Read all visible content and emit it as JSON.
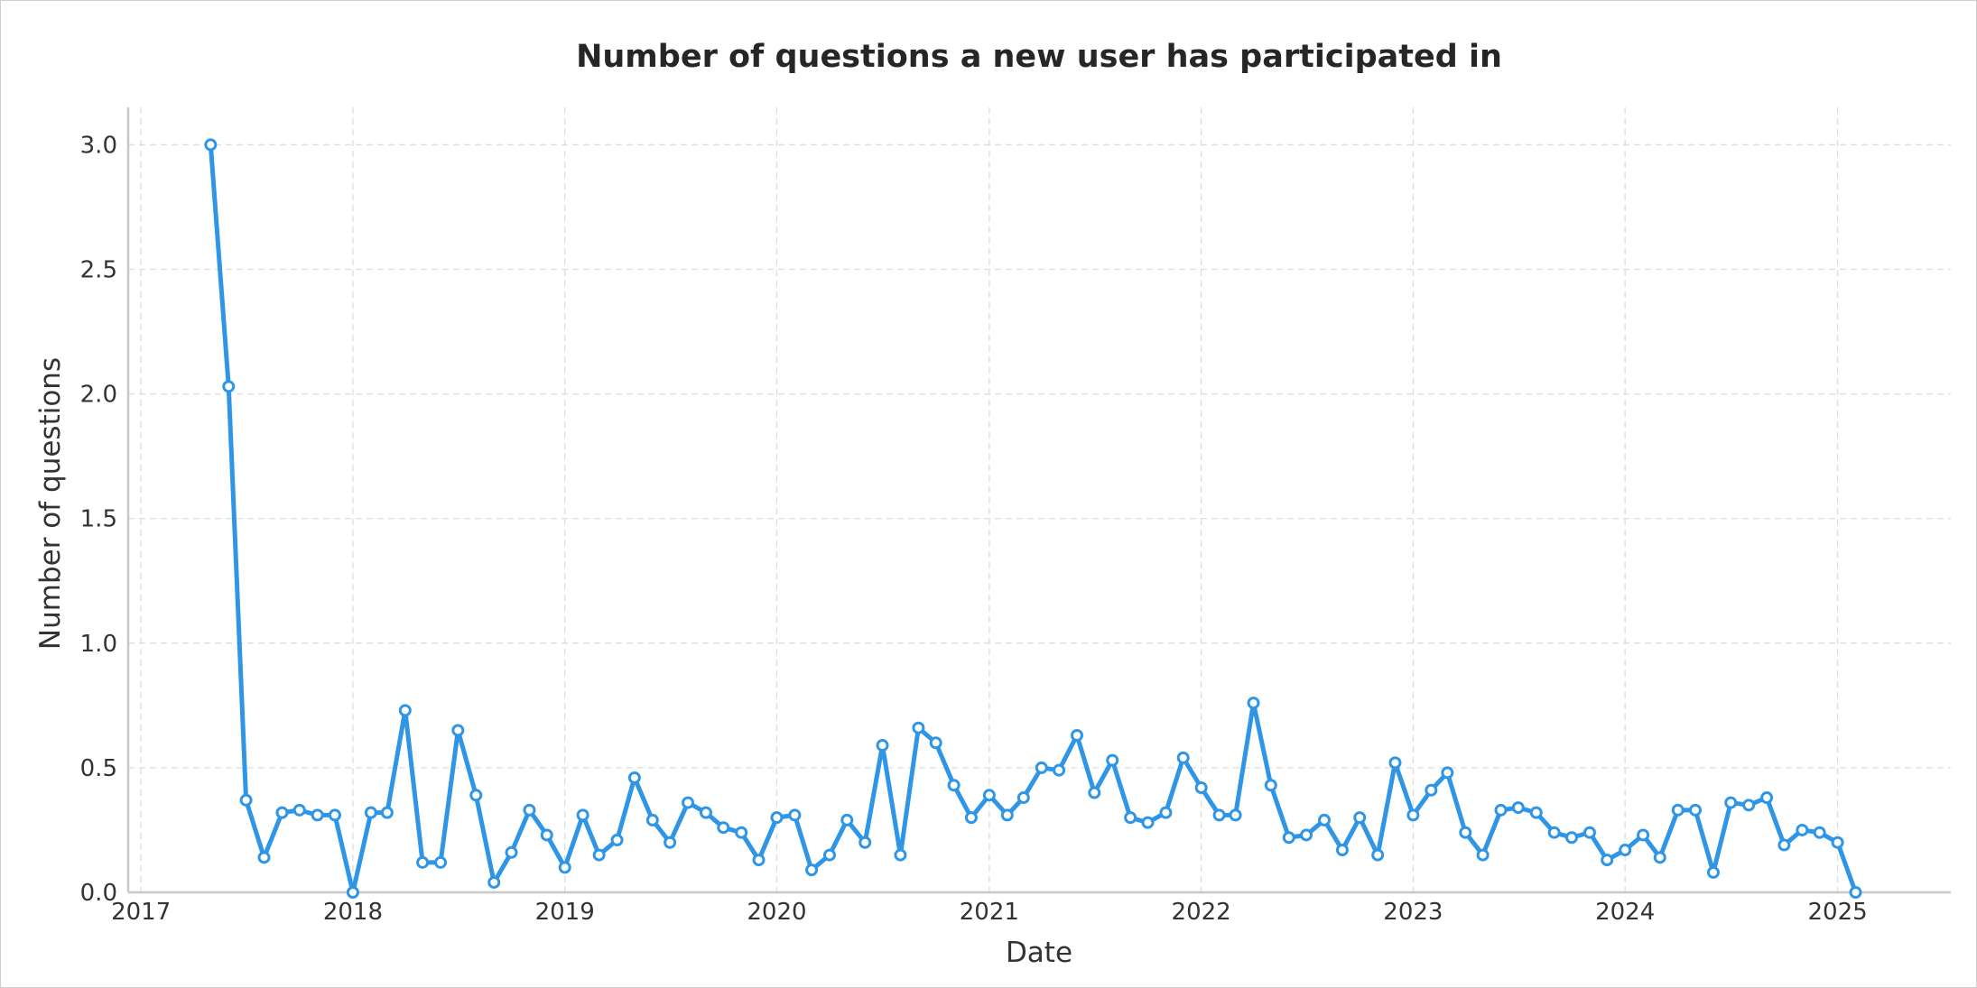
{
  "chart_data": {
    "type": "line",
    "title": "Number of questions a new user has participated in",
    "xlabel": "Date",
    "ylabel": "Number of questions",
    "xlim": [
      "2016-12-10",
      "2025-07-15"
    ],
    "ylim": [
      0,
      3.15
    ],
    "x_ticks": [
      "2017",
      "2018",
      "2019",
      "2020",
      "2021",
      "2022",
      "2023",
      "2024",
      "2025"
    ],
    "y_ticks": [
      "0.0",
      "0.5",
      "1.0",
      "1.5",
      "2.0",
      "2.5",
      "3.0"
    ],
    "grid": true,
    "series_color": "#2f95e6",
    "x": [
      "2017-05",
      "2017-06",
      "2017-07",
      "2017-08",
      "2017-09",
      "2017-10",
      "2017-11",
      "2017-12",
      "2018-01",
      "2018-02",
      "2018-03",
      "2018-04",
      "2018-05",
      "2018-06",
      "2018-07",
      "2018-08",
      "2018-09",
      "2018-10",
      "2018-11",
      "2018-12",
      "2019-01",
      "2019-02",
      "2019-03",
      "2019-04",
      "2019-05",
      "2019-06",
      "2019-07",
      "2019-08",
      "2019-09",
      "2019-10",
      "2019-11",
      "2019-12",
      "2020-01",
      "2020-02",
      "2020-03",
      "2020-04",
      "2020-05",
      "2020-06",
      "2020-07",
      "2020-08",
      "2020-09",
      "2020-10",
      "2020-11",
      "2020-12",
      "2021-01",
      "2021-02",
      "2021-03",
      "2021-04",
      "2021-05",
      "2021-06",
      "2021-07",
      "2021-08",
      "2021-09",
      "2021-10",
      "2021-11",
      "2021-12",
      "2022-01",
      "2022-02",
      "2022-03",
      "2022-04",
      "2022-05",
      "2022-06",
      "2022-07",
      "2022-08",
      "2022-09",
      "2022-10",
      "2022-11",
      "2022-12",
      "2023-01",
      "2023-02",
      "2023-03",
      "2023-04",
      "2023-05",
      "2023-06",
      "2023-07",
      "2023-08",
      "2023-09",
      "2023-10",
      "2023-11",
      "2023-12",
      "2024-01",
      "2024-02",
      "2024-03",
      "2024-04",
      "2024-05",
      "2024-06",
      "2024-07",
      "2024-08",
      "2024-09",
      "2024-10",
      "2024-11",
      "2024-12",
      "2025-01",
      "2025-02"
    ],
    "series": [
      {
        "values": [
          3.0,
          2.03,
          0.37,
          0.14,
          0.32,
          0.33,
          0.31,
          0.31,
          0.0,
          0.32,
          0.32,
          0.73,
          0.12,
          0.12,
          0.65,
          0.39,
          0.04,
          0.16,
          0.33,
          0.23,
          0.1,
          0.31,
          0.15,
          0.21,
          0.46,
          0.29,
          0.2,
          0.36,
          0.32,
          0.26,
          0.24,
          0.13,
          0.3,
          0.31,
          0.09,
          0.15,
          0.29,
          0.2,
          0.59,
          0.15,
          0.66,
          0.6,
          0.43,
          0.3,
          0.39,
          0.31,
          0.38,
          0.5,
          0.49,
          0.63,
          0.4,
          0.53,
          0.3,
          0.28,
          0.32,
          0.54,
          0.42,
          0.31,
          0.31,
          0.76,
          0.43,
          0.22,
          0.23,
          0.29,
          0.17,
          0.3,
          0.15,
          0.52,
          0.31,
          0.41,
          0.48,
          0.24,
          0.15,
          0.33,
          0.34,
          0.32,
          0.24,
          0.22,
          0.24,
          0.13,
          0.17,
          0.23,
          0.14,
          0.33,
          0.33,
          0.08,
          0.36,
          0.35,
          0.38,
          0.19,
          0.25,
          0.24,
          0.2,
          0.0
        ]
      }
    ]
  }
}
